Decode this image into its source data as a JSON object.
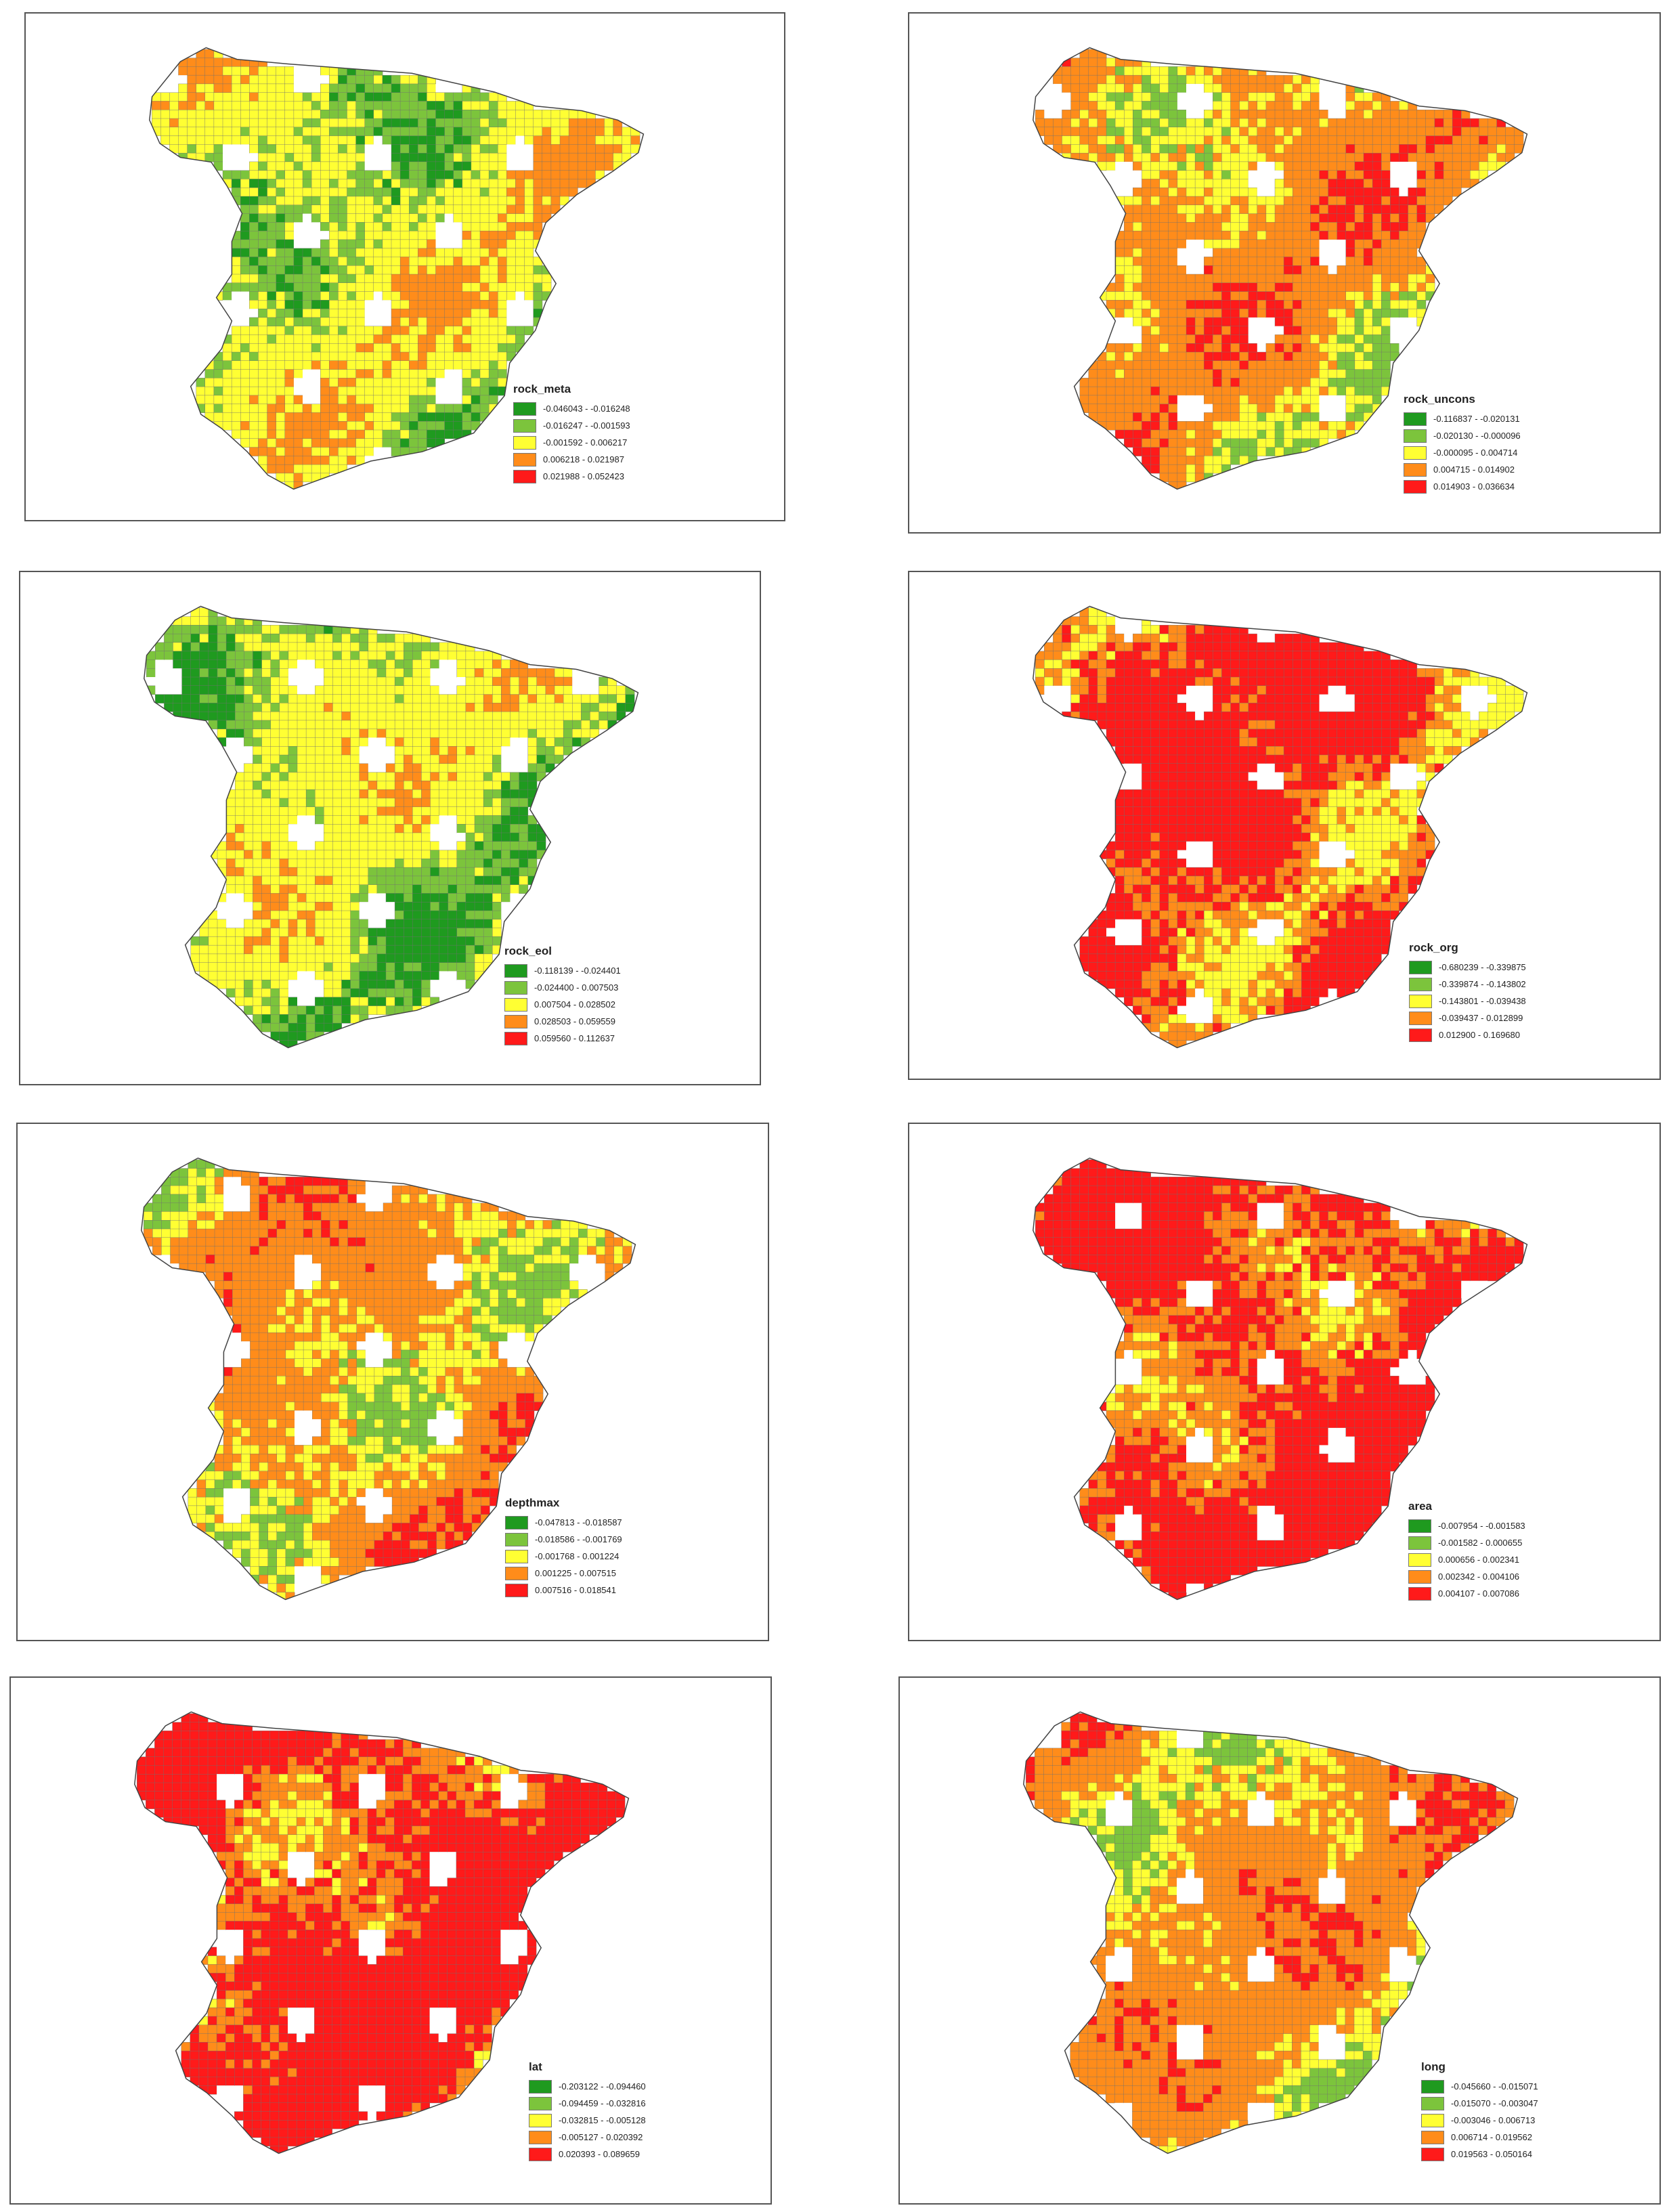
{
  "colors": {
    "dark_green": "#1f9a1f",
    "light_green": "#7cc43c",
    "yellow": "#ffff33",
    "orange": "#ff8c1a",
    "red": "#ff1a1a",
    "border": "#707070"
  },
  "panels": [
    {
      "variable": "rock_meta",
      "classes": [
        "-0.046043 - -0.016248",
        "-0.016247 - -0.001593",
        "-0.001592 - 0.006217",
        "0.006218 - 0.021987",
        "0.021988 - 0.052423"
      ],
      "dominant_class": 2
    },
    {
      "variable": "rock_uncons",
      "classes": [
        "-0.116837 - -0.020131",
        "-0.020130 - -0.000096",
        "-0.000095 - 0.004714",
        "0.004715 - 0.014902",
        "0.014903 - 0.036634"
      ],
      "dominant_class": 3
    },
    {
      "variable": "rock_eol",
      "classes": [
        "-0.118139 - -0.024401",
        "-0.024400 - 0.007503",
        "0.007504 - 0.028502",
        "0.028503 - 0.059559",
        "0.059560 - 0.112637"
      ],
      "dominant_class": 2
    },
    {
      "variable": "rock_org",
      "classes": [
        "-0.680239 - -0.339875",
        "-0.339874 - -0.143802",
        "-0.143801 - -0.039438",
        "-0.039437 - 0.012899",
        "0.012900 - 0.169680"
      ],
      "dominant_class": 4
    },
    {
      "variable": "depthmax",
      "classes": [
        "-0.047813 - -0.018587",
        "-0.018586 - -0.001769",
        "-0.001768 - 0.001224",
        "0.001225 - 0.007515",
        "0.007516 - 0.018541"
      ],
      "dominant_class": 3
    },
    {
      "variable": "area",
      "classes": [
        "-0.007954 - -0.001583",
        "-0.001582 - 0.000655",
        "0.000656 - 0.002341",
        "0.002342 - 0.004106",
        "0.004107 - 0.007086"
      ],
      "dominant_class": 4
    },
    {
      "variable": "lat",
      "classes": [
        "-0.203122 - -0.094460",
        "-0.094459 - -0.032816",
        "-0.032815 - -0.005128",
        "-0.005127 - 0.020392",
        "0.020393 - 0.089659"
      ],
      "dominant_class": 4
    },
    {
      "variable": "long",
      "classes": [
        "-0.045660 - -0.015071",
        "-0.015070 - -0.003047",
        "-0.003046 - 0.006713",
        "0.006714 - 0.019562",
        "0.019563 - 0.050164"
      ],
      "dominant_class": 3
    }
  ]
}
